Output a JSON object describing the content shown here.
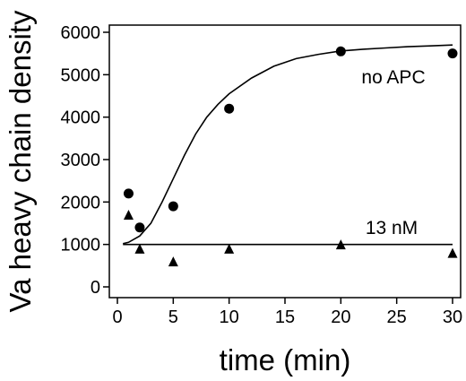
{
  "chart_data": {
    "type": "scatter",
    "xlabel": "time (min)",
    "ylabel": "Va heavy chain density",
    "xlim": [
      0,
      30
    ],
    "ylim": [
      0,
      6000
    ],
    "xticks": [
      0,
      5,
      10,
      15,
      20,
      25,
      30
    ],
    "yticks": [
      0,
      1000,
      2000,
      3000,
      4000,
      5000,
      6000
    ],
    "grid": false,
    "series": [
      {
        "name": "no APC",
        "marker": "circle",
        "x": [
          1,
          2,
          5,
          10,
          20,
          30
        ],
        "y": [
          2200,
          1400,
          1900,
          4200,
          5550,
          5500
        ],
        "fit": {
          "x": [
            0.5,
            1,
            2,
            3,
            4,
            5,
            6,
            7,
            8,
            9,
            10,
            12,
            14,
            16,
            18,
            20,
            22,
            24,
            26,
            28,
            30
          ],
          "y": [
            1020,
            1050,
            1200,
            1500,
            2000,
            2550,
            3100,
            3600,
            4000,
            4300,
            4550,
            4920,
            5200,
            5380,
            5480,
            5560,
            5600,
            5630,
            5660,
            5680,
            5700
          ]
        }
      },
      {
        "name": "13 nM",
        "marker": "triangle",
        "x": [
          1,
          2,
          5,
          10,
          20,
          30
        ],
        "y": [
          1700,
          900,
          600,
          900,
          1000,
          800
        ],
        "fit": {
          "x": [
            0.5,
            30
          ],
          "y": [
            1000,
            1000
          ]
        }
      }
    ],
    "annotations": [
      "no APC",
      "13 nM"
    ]
  }
}
